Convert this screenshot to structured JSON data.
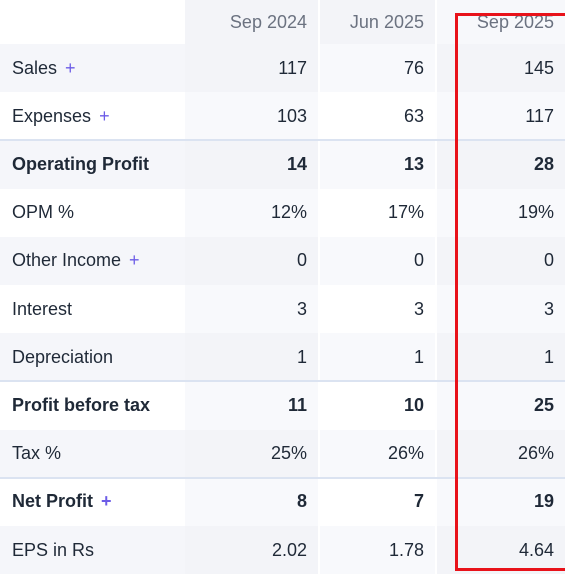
{
  "table": {
    "columns": [
      "Sep 2024",
      "Jun 2025",
      "Sep 2025"
    ],
    "rows": [
      {
        "label": "Sales",
        "expand": "+",
        "cells": [
          "117",
          "76",
          "145"
        ]
      },
      {
        "label": "Expenses",
        "expand": "+",
        "cells": [
          "103",
          "63",
          "117"
        ]
      },
      {
        "label": "Operating Profit",
        "bold": true,
        "cells": [
          "14",
          "13",
          "28"
        ]
      },
      {
        "label": "OPM %",
        "cells": [
          "12%",
          "17%",
          "19%"
        ]
      },
      {
        "label": "Other Income",
        "expand": "+",
        "cells": [
          "0",
          "0",
          "0"
        ]
      },
      {
        "label": "Interest",
        "cells": [
          "3",
          "3",
          "3"
        ]
      },
      {
        "label": "Depreciation",
        "cells": [
          "1",
          "1",
          "1"
        ]
      },
      {
        "label": "Profit before tax",
        "bold": true,
        "cells": [
          "11",
          "10",
          "25"
        ]
      },
      {
        "label": "Tax %",
        "cells": [
          "25%",
          "26%",
          "26%"
        ]
      },
      {
        "label": "Net Profit",
        "expand": "+",
        "bold": true,
        "cells": [
          "8",
          "7",
          "19"
        ]
      },
      {
        "label": "EPS in Rs",
        "cells": [
          "2.02",
          "1.78",
          "4.64"
        ]
      }
    ]
  }
}
